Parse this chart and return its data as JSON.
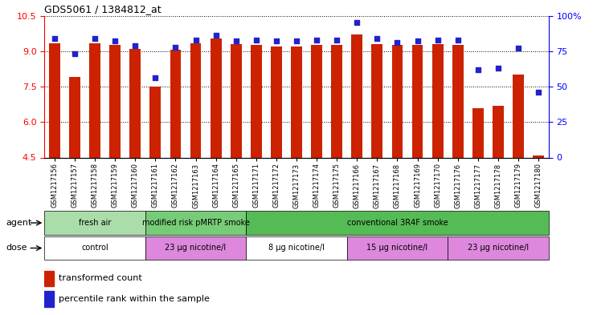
{
  "title": "GDS5061 / 1384812_at",
  "samples": [
    "GSM1217156",
    "GSM1217157",
    "GSM1217158",
    "GSM1217159",
    "GSM1217160",
    "GSM1217161",
    "GSM1217162",
    "GSM1217163",
    "GSM1217164",
    "GSM1217165",
    "GSM1217171",
    "GSM1217172",
    "GSM1217173",
    "GSM1217174",
    "GSM1217175",
    "GSM1217166",
    "GSM1217167",
    "GSM1217168",
    "GSM1217169",
    "GSM1217170",
    "GSM1217176",
    "GSM1217177",
    "GSM1217178",
    "GSM1217179",
    "GSM1217180"
  ],
  "bar_values": [
    9.35,
    7.9,
    9.35,
    9.25,
    9.1,
    7.5,
    9.05,
    9.35,
    9.55,
    9.3,
    9.25,
    9.2,
    9.2,
    9.25,
    9.25,
    9.7,
    9.3,
    9.25,
    9.25,
    9.3,
    9.25,
    6.6,
    6.7,
    8.0,
    4.6
  ],
  "dot_values": [
    84,
    73,
    84,
    82,
    79,
    56,
    78,
    83,
    86,
    82,
    83,
    82,
    82,
    83,
    83,
    95,
    84,
    81,
    82,
    83,
    83,
    62,
    63,
    77,
    46
  ],
  "ylim_left": [
    4.5,
    10.5
  ],
  "ylim_right": [
    0,
    100
  ],
  "yticks_left": [
    4.5,
    6.0,
    7.5,
    9.0,
    10.5
  ],
  "yticks_right": [
    0,
    25,
    50,
    75,
    100
  ],
  "bar_color": "#cc2200",
  "dot_color": "#2222cc",
  "bar_bottom": 4.5,
  "agent_groups": [
    {
      "label": "fresh air",
      "start": 0,
      "end": 5,
      "color": "#aaddaa"
    },
    {
      "label": "modified risk pMRTP smoke",
      "start": 5,
      "end": 10,
      "color": "#77cc77"
    },
    {
      "label": "conventional 3R4F smoke",
      "start": 10,
      "end": 25,
      "color": "#55bb55"
    }
  ],
  "dose_groups": [
    {
      "label": "control",
      "start": 0,
      "end": 5,
      "color": "#ffffff"
    },
    {
      "label": "23 μg nicotine/l",
      "start": 5,
      "end": 10,
      "color": "#dd88dd"
    },
    {
      "label": "8 μg nicotine/l",
      "start": 10,
      "end": 15,
      "color": "#ffffff"
    },
    {
      "label": "15 μg nicotine/l",
      "start": 15,
      "end": 20,
      "color": "#dd88dd"
    },
    {
      "label": "23 μg nicotine/l",
      "start": 20,
      "end": 25,
      "color": "#dd88dd"
    }
  ],
  "agent_label": "agent",
  "dose_label": "dose",
  "legend_bar": "transformed count",
  "legend_dot": "percentile rank within the sample"
}
